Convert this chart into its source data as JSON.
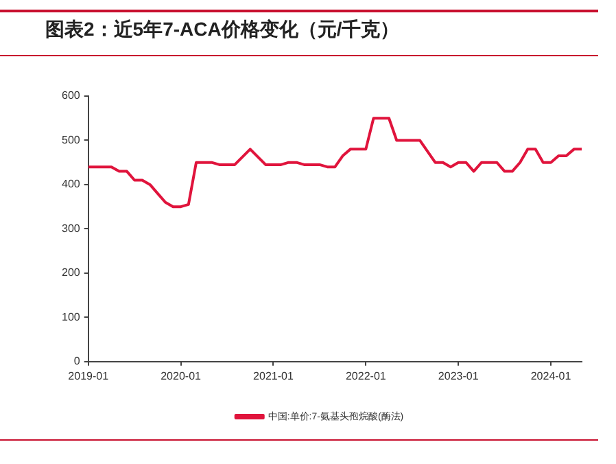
{
  "chart_data": {
    "type": "line",
    "title": "图表2：近5年7-ACA价格变化（元/千克）",
    "x": [
      "2019-01",
      "2019-04",
      "2019-05",
      "2019-06",
      "2019-07",
      "2019-08",
      "2019-09",
      "2019-10",
      "2019-11",
      "2019-12",
      "2020-01",
      "2020-02",
      "2020-03",
      "2020-05",
      "2020-06",
      "2020-08",
      "2020-10",
      "2020-12",
      "2021-02",
      "2021-03",
      "2021-04",
      "2021-05",
      "2021-07",
      "2021-08",
      "2021-09",
      "2021-10",
      "2021-11",
      "2022-01",
      "2022-02",
      "2022-04",
      "2022-05",
      "2022-08",
      "2022-10",
      "2022-11",
      "2022-12",
      "2023-01",
      "2023-02",
      "2023-03",
      "2023-04",
      "2023-06",
      "2023-07",
      "2023-08",
      "2023-09",
      "2023-10",
      "2023-11",
      "2023-12",
      "2024-01",
      "2024-02",
      "2024-03",
      "2024-04",
      "2024-05"
    ],
    "series": [
      {
        "name": "中国:单价:7-氨基头孢烷酸(酶法)",
        "color": "#e0143c",
        "values": [
          440,
          440,
          430,
          430,
          410,
          410,
          400,
          380,
          360,
          350,
          350,
          355,
          450,
          450,
          445,
          445,
          480,
          445,
          445,
          450,
          450,
          445,
          445,
          440,
          440,
          465,
          480,
          480,
          550,
          550,
          500,
          500,
          450,
          450,
          440,
          450,
          450,
          430,
          450,
          450,
          430,
          430,
          450,
          480,
          480,
          450,
          450,
          465,
          465,
          480,
          480
        ]
      }
    ],
    "xlim": [
      "2019-01",
      "2024-05"
    ],
    "xticks": [
      "2019-01",
      "2020-01",
      "2021-01",
      "2022-01",
      "2023-01",
      "2024-01"
    ],
    "ylim": [
      0,
      600
    ],
    "yticks": [
      0,
      100,
      200,
      300,
      400,
      500,
      600
    ],
    "grid": false,
    "legend": "bottom",
    "marker": "none",
    "line_style": "solid"
  }
}
